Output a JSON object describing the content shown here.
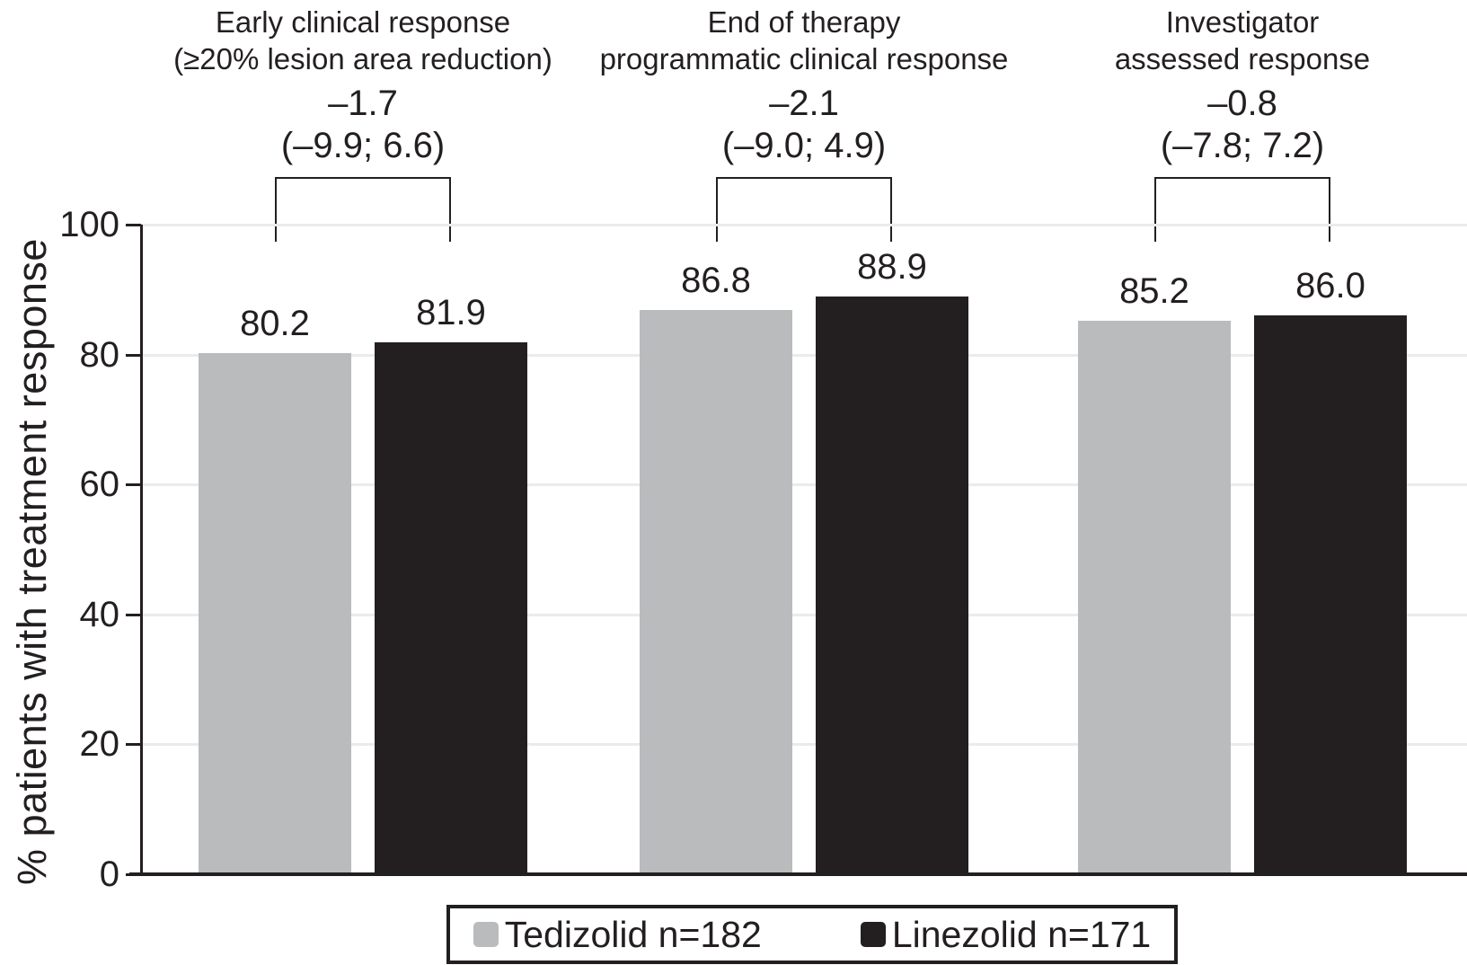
{
  "chart_data": {
    "type": "bar",
    "title": "",
    "xlabel": "",
    "ylabel": "% patients with treatment response",
    "ylim": [
      0,
      100
    ],
    "yticks": [
      0,
      20,
      40,
      60,
      80,
      100
    ],
    "grid": true,
    "legend_position": "bottom",
    "categories": [
      "Early clinical response (≥20% lesion area reduction)",
      "End of therapy programmatic clinical response",
      "Investigator assessed response"
    ],
    "category_label_lines": [
      [
        "Early clinical response",
        "(≥20% lesion area reduction)"
      ],
      [
        "End of therapy",
        "programmatic clinical response"
      ],
      [
        "Investigator",
        "assessed response"
      ]
    ],
    "series": [
      {
        "name": "Tedizolid n=182",
        "color": "#b9bbbd",
        "values": [
          80.2,
          86.8,
          85.2
        ]
      },
      {
        "name": "Linezolid n=171",
        "color": "#231f20",
        "values": [
          81.9,
          88.9,
          86.0
        ]
      }
    ],
    "value_labels": [
      [
        "80.2",
        "81.9"
      ],
      [
        "86.8",
        "88.9"
      ],
      [
        "85.2",
        "86.0"
      ]
    ],
    "annotations": [
      {
        "difference": "–1.7",
        "ci": "(–9.9; 6.6)"
      },
      {
        "difference": "–2.1",
        "ci": "(–9.0; 4.9)"
      },
      {
        "difference": "–0.8",
        "ci": "(–7.8; 7.2)"
      }
    ],
    "legend": [
      {
        "label": "Tedizolid n=182",
        "color": "#b9bbbd"
      },
      {
        "label": "Linezolid n=171",
        "color": "#231f20"
      }
    ]
  },
  "colors": {
    "background": "#ffffff",
    "text": "#231f20",
    "axis": "#231f20",
    "gridline": "#eaebeb",
    "gray_bar": "#b9bbbd",
    "black_bar": "#231f20"
  }
}
